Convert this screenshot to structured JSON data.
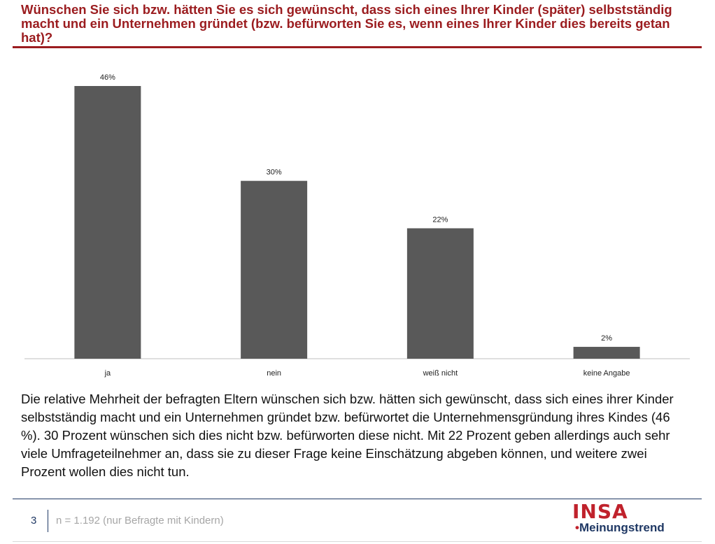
{
  "header": {
    "question": "Wünschen Sie sich bzw. hätten Sie es sich gewünscht, dass sich eines Ihrer Kinder (später) selbstständig macht und ein Unternehmen gründet (bzw. befürworten Sie es, wenn eines Ihrer Kinder dies bereits getan hat)?"
  },
  "chart_data": {
    "type": "bar",
    "categories": [
      "ja",
      "nein",
      "weiß nicht",
      "keine Angabe"
    ],
    "values": [
      46,
      30,
      22,
      2
    ],
    "value_labels": [
      "46%",
      "30%",
      "22%",
      "2%"
    ],
    "unit": "%",
    "ylim": [
      0,
      46
    ],
    "grid": false,
    "legend": "none",
    "bar_color": "#595959"
  },
  "summary": {
    "text": "Die relative Mehrheit der befragten Eltern wünschen sich bzw. hätten sich gewünscht, dass sich eines ihrer Kinder selbstständig macht und ein Unternehmen gründet bzw. befürwortet die Unternehmensgründung ihres Kindes (46 %). 30 Prozent wünschen sich dies nicht bzw. befürworten diese nicht. Mit 22 Prozent geben allerdings auch sehr viele Umfrageteilnehmer an, dass sie zu dieser Frage keine Einschätzung abgeben können, und weitere zwei Prozent wollen dies nicht tun."
  },
  "footer": {
    "page_number": "3",
    "sample_note": "n = 1.192 (nur Befragte mit Kindern)",
    "logo_primary": "INSA",
    "logo_dot": "•",
    "logo_secondary": "Meinungstrend"
  },
  "colors": {
    "title": "#9b1c1f",
    "accent_blue": "#1f3864",
    "logo_red": "#c0222c"
  }
}
